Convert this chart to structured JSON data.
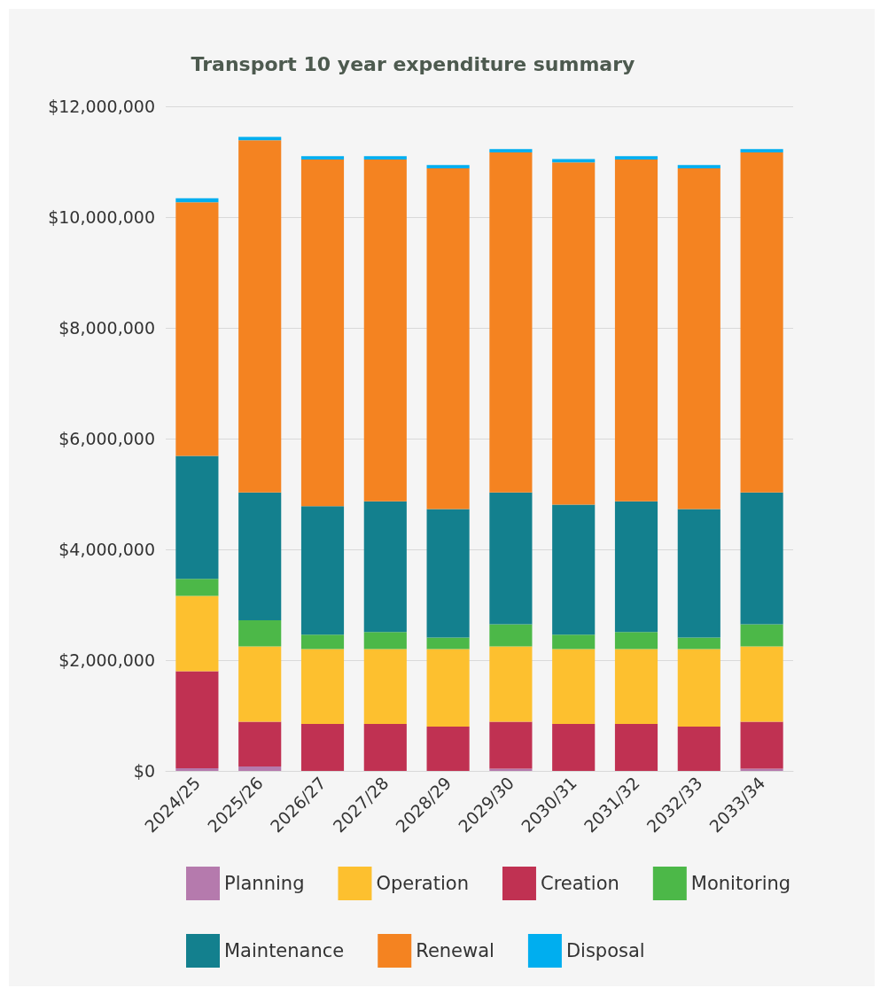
{
  "chart_data": {
    "type": "bar",
    "title": "Transport 10 year expenditure summary",
    "stacked": true,
    "categories": [
      "2024/25",
      "2025/26",
      "2026/27",
      "2027/28",
      "2028/29",
      "2029/30",
      "2030/31",
      "2031/32",
      "2032/33",
      "2033/34"
    ],
    "series": [
      {
        "name": "Planning",
        "color": "#b57aad",
        "values": [
          50000,
          80000,
          0,
          0,
          0,
          40000,
          0,
          0,
          0,
          40000
        ]
      },
      {
        "name": "Creation",
        "color": "#c03152",
        "values": [
          1750000,
          810000,
          850000,
          850000,
          800000,
          850000,
          850000,
          850000,
          800000,
          850000
        ]
      },
      {
        "name": "Operation",
        "color": "#fdc02f",
        "values": [
          1360000,
          1360000,
          1350000,
          1350000,
          1400000,
          1360000,
          1350000,
          1350000,
          1400000,
          1360000
        ]
      },
      {
        "name": "Monitoring",
        "color": "#4cb848",
        "values": [
          310000,
          470000,
          260000,
          310000,
          210000,
          400000,
          260000,
          310000,
          210000,
          400000
        ]
      },
      {
        "name": "Maintenance",
        "color": "#13808e",
        "values": [
          2220000,
          2310000,
          2320000,
          2360000,
          2320000,
          2380000,
          2350000,
          2360000,
          2320000,
          2380000
        ]
      },
      {
        "name": "Renewal",
        "color": "#f48321",
        "values": [
          4580000,
          6360000,
          6260000,
          6170000,
          6150000,
          6140000,
          6180000,
          6170000,
          6150000,
          6140000
        ]
      },
      {
        "name": "Disposal",
        "color": "#00aeef",
        "values": [
          70000,
          60000,
          60000,
          60000,
          60000,
          60000,
          60000,
          60000,
          60000,
          60000
        ]
      }
    ],
    "ylim": [
      0,
      12000000
    ],
    "yticks": [
      {
        "value": 0,
        "label": "$0"
      },
      {
        "value": 2000000,
        "label": "$2,000,000"
      },
      {
        "value": 4000000,
        "label": "$4,000,000"
      },
      {
        "value": 6000000,
        "label": "$6,000,000"
      },
      {
        "value": 8000000,
        "label": "$8,000,000"
      },
      {
        "value": 10000000,
        "label": "$10,000,000"
      },
      {
        "value": 12000000,
        "label": "$12,000,000"
      }
    ],
    "grid": "y",
    "legend": "bottom"
  }
}
